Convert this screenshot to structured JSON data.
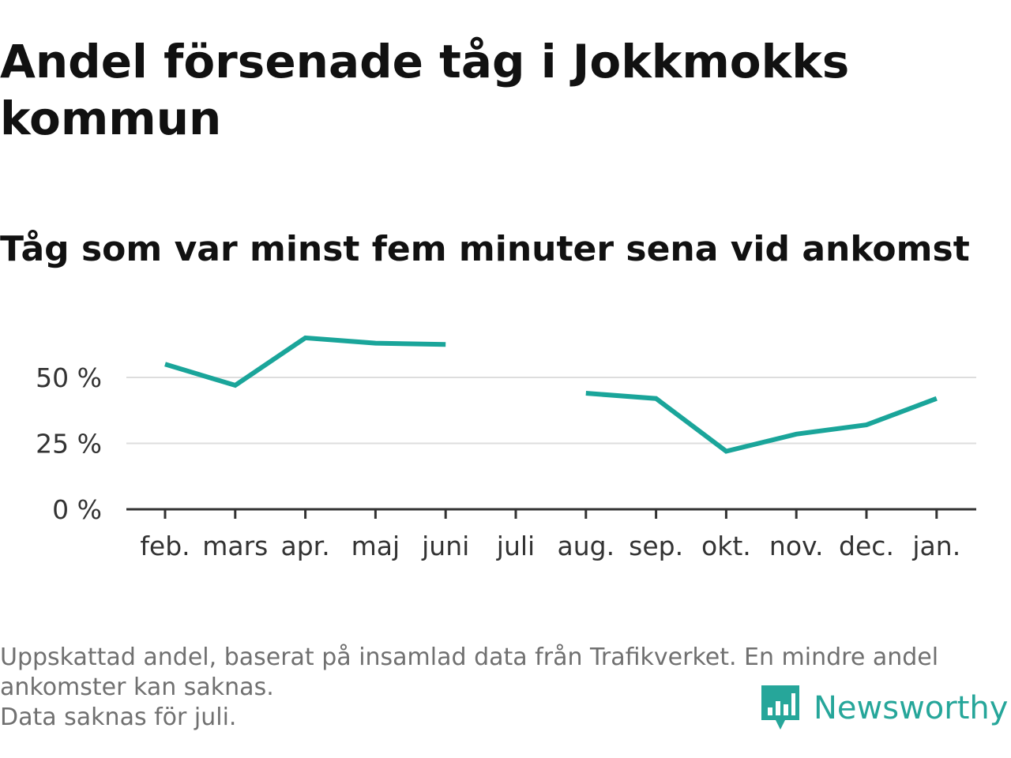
{
  "header": {
    "title": "Andel försenade tåg i Jokkmokks kommun",
    "subtitle": "Tåg som var minst fem minuter sena vid ankomst"
  },
  "footer": {
    "note_line1": "Uppskattad andel, baserat på insamlad data från Trafikverket. En mindre andel ankomster kan saknas.",
    "note_line2": "Data saknas för juli.",
    "brand": "Newsworthy",
    "brand_icon": "newsworthy-logo-icon"
  },
  "colors": {
    "line": "#1aa59a",
    "grid": "#dddddd",
    "axis": "#333333",
    "brand": "#26a69a"
  },
  "chart_data": {
    "type": "line",
    "title": "Andel försenade tåg i Jokkmokks kommun",
    "subtitle": "Tåg som var minst fem minuter sena vid ankomst",
    "xlabel": "",
    "ylabel": "",
    "categories": [
      "feb.",
      "mars",
      "apr.",
      "maj",
      "juni",
      "juli",
      "aug.",
      "sep.",
      "okt.",
      "nov.",
      "dec.",
      "jan."
    ],
    "series": [
      {
        "values": [
          55,
          47,
          65,
          63,
          62.5,
          null,
          44,
          42,
          22,
          28.5,
          32,
          42
        ]
      }
    ],
    "y_ticks": [
      0,
      25,
      50
    ],
    "y_tick_labels": [
      "0 %",
      "25 %",
      "50 %"
    ],
    "ylim": [
      0,
      70
    ],
    "grid": true,
    "legend": "none"
  }
}
